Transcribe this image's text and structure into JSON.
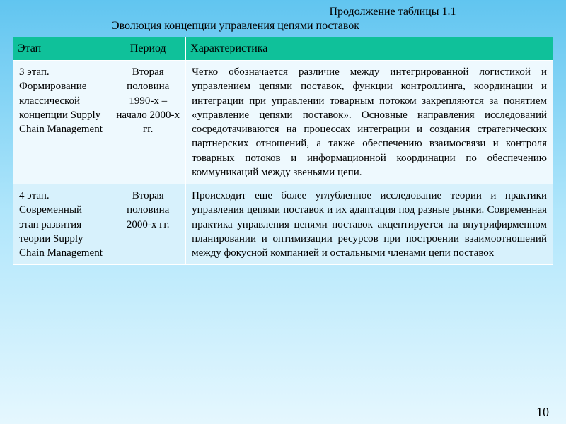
{
  "header": {
    "continuation": "Продолжение таблицы 1.1",
    "title": "Эволюция концепции управления цепями поставок"
  },
  "table": {
    "columns": [
      "Этап",
      "Период",
      "Характеристика"
    ],
    "rows": [
      {
        "stage": "3 этап. Формирование классической концепции Supply Chain Management",
        "period": "Вторая половина 1990-х – начало 2000-х гг.",
        "desc": "Четко обозначается различие между интегрированной логистикой и управлением цепями поставок, функции контроллинга, координации и интеграции при управлении товарным потоком закрепляются за понятием «управление цепями поставок». Основные направления исследований сосредотачиваются на процессах интеграции и создания стратегических партнерских отношений, а также обеспечению взаимосвязи и контроля товарных потоков и информационной координации по обеспечению коммуникаций между звеньями цепи."
      },
      {
        "stage": "4 этап. Современный этап развития теории Supply Chain Management",
        "period": "Вторая половина 2000-х гг.",
        "desc": "Происходит еще более углубленное исследование теории и практики управления цепями поставок и их адаптация под разные рынки. Современная практика управления цепями поставок акцентируется на внутрифирменном планировании и оптимизации ресурсов при построении взаимоотношений между фокусной компанией и остальными членами цепи поставок"
      }
    ]
  },
  "page_number": "10",
  "styling": {
    "header_bg": "#0fc19a",
    "border_color": "#ffffff",
    "row1_bg": "#eef9fe",
    "row2_bg": "#d7f1fc",
    "body_gradient_top": "#61c5f0",
    "body_gradient_mid": "#b0e6fb",
    "body_gradient_bot": "#e5f7fe",
    "font_family": "Times New Roman",
    "header_fontsize": 16,
    "cell_fontsize": 15,
    "col_widths_pct": [
      18,
      14,
      68
    ]
  }
}
